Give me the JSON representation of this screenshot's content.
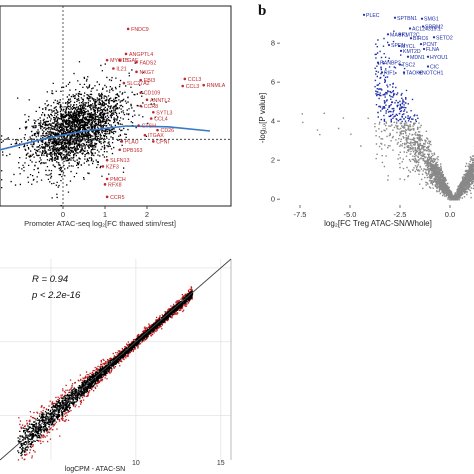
{
  "panel_b_letter": "b",
  "chart_data": [
    {
      "type": "scatter",
      "panel": "top-left",
      "xlabel": "Promoter ATAC-seq log₂[FC thawed stim/rest]",
      "x_ticks": [
        0,
        1,
        2
      ],
      "xlim": [
        -1.5,
        4
      ],
      "ylim": [
        -1.6,
        3.2
      ],
      "dashed_vertical_x": 0,
      "dashed_horizontal_y": 0,
      "point_color": "#000000",
      "label_color": "#c0282d",
      "trend_color": "#3a78c8",
      "trend": [
        [
          -1.5,
          -0.25
        ],
        [
          -0.5,
          0.0
        ],
        [
          0.5,
          0.2
        ],
        [
          1.5,
          0.32
        ],
        [
          2.5,
          0.3
        ],
        [
          3.5,
          0.2
        ]
      ],
      "cloud_center": [
        0.3,
        0.25
      ],
      "labeled_points": [
        {
          "label": "FNDC9",
          "x": 1.55,
          "y": 2.65
        },
        {
          "label": "ANGPTL4",
          "x": 1.5,
          "y": 2.05
        },
        {
          "label": "MYO1B",
          "x": 1.05,
          "y": 1.9
        },
        {
          "label": "ITGAE",
          "x": 1.35,
          "y": 1.9
        },
        {
          "label": "FADS2",
          "x": 1.75,
          "y": 1.85
        },
        {
          "label": "IL21",
          "x": 1.2,
          "y": 1.7
        },
        {
          "label": "NKG7",
          "x": 1.75,
          "y": 1.62
        },
        {
          "label": "EBI3",
          "x": 1.85,
          "y": 1.42
        },
        {
          "label": "SLC27A2",
          "x": 1.45,
          "y": 1.35
        },
        {
          "label": "CCL3",
          "x": 2.9,
          "y": 1.45
        },
        {
          "label": "CCL3",
          "x": 2.85,
          "y": 1.28
        },
        {
          "label": "RNMLA",
          "x": 3.35,
          "y": 1.3
        },
        {
          "label": "CD109",
          "x": 1.85,
          "y": 1.12
        },
        {
          "label": "ANNTL2",
          "x": 2.0,
          "y": 0.95
        },
        {
          "label": "CCR8",
          "x": 1.85,
          "y": 0.8
        },
        {
          "label": "SYTL3",
          "x": 2.15,
          "y": 0.65
        },
        {
          "label": "CCL4",
          "x": 2.1,
          "y": 0.5
        },
        {
          "label": "CTSH",
          "x": 1.8,
          "y": 0.33
        },
        {
          "label": "CD26",
          "x": 2.25,
          "y": 0.22
        },
        {
          "label": "ITGAX",
          "x": 1.95,
          "y": 0.1
        },
        {
          "label": "CPNI",
          "x": 2.15,
          "y": -0.05
        },
        {
          "label": "PLAU",
          "x": 1.4,
          "y": -0.05
        },
        {
          "label": "DPB163",
          "x": 1.35,
          "y": -0.25
        },
        {
          "label": "SLFN13",
          "x": 1.05,
          "y": -0.5
        },
        {
          "label": "KZF3",
          "x": 0.95,
          "y": -0.65
        },
        {
          "label": "PMCH",
          "x": 1.05,
          "y": -0.95
        },
        {
          "label": "RFX8",
          "x": 1.0,
          "y": -1.08
        },
        {
          "label": "CCR5",
          "x": 1.05,
          "y": -1.38
        }
      ]
    },
    {
      "type": "scatter",
      "panel": "top-right",
      "xlabel": "log₂[FC Treg ATAC-SN/Whole]",
      "ylabel": "-log₁₀[P value]",
      "x_ticks": [
        -7.5,
        -5.0,
        -2.5,
        0.0
      ],
      "y_ticks": [
        0,
        2,
        4,
        6,
        8
      ],
      "xlim": [
        -8.5,
        1.2
      ],
      "ylim": [
        -0.3,
        9.8
      ],
      "colors": {
        "not_significant": "#888888",
        "down": "#1f2fa8",
        "up": "#d42020"
      },
      "labeled_points": [
        {
          "label": "PLEC",
          "x": -4.3,
          "y": 9.45
        },
        {
          "label": "SPTBN1",
          "x": -2.75,
          "y": 9.3
        },
        {
          "label": "SMG1",
          "x": -1.4,
          "y": 9.25
        },
        {
          "label": "SRRM2",
          "x": -1.35,
          "y": 8.85
        },
        {
          "label": "AC124319.1",
          "x": -2.0,
          "y": 8.75
        },
        {
          "label": "MACF1",
          "x": -3.1,
          "y": 8.45
        },
        {
          "label": "KMT2C",
          "x": -2.5,
          "y": 8.45
        },
        {
          "label": "BIRC6",
          "x": -1.95,
          "y": 8.25
        },
        {
          "label": "PCNT",
          "x": -1.45,
          "y": 7.95
        },
        {
          "label": "SETD2",
          "x": -0.8,
          "y": 8.3
        },
        {
          "label": "SPEN",
          "x": -3.05,
          "y": 7.9
        },
        {
          "label": "MYCL",
          "x": -2.55,
          "y": 7.85
        },
        {
          "label": "KMT2D",
          "x": -2.45,
          "y": 7.6
        },
        {
          "label": "FLNA",
          "x": -1.3,
          "y": 7.7
        },
        {
          "label": "MDN1",
          "x": -2.1,
          "y": 7.3
        },
        {
          "label": "HYOU1",
          "x": -1.1,
          "y": 7.3
        },
        {
          "label": "RANBP2",
          "x": -3.6,
          "y": 7.0
        },
        {
          "label": "TSC2",
          "x": -2.5,
          "y": 6.9
        },
        {
          "label": "CIC",
          "x": -1.1,
          "y": 6.8
        },
        {
          "label": "RIF1",
          "x": -3.4,
          "y": 6.5
        },
        {
          "label": "TAOK2",
          "x": -2.3,
          "y": 6.5
        },
        {
          "label": "NOTCH1",
          "x": -1.5,
          "y": 6.5
        }
      ]
    },
    {
      "type": "scatter",
      "panel": "bottom",
      "xlabel": "logCPM - ATAC-SN",
      "x_ticks": [
        10,
        15
      ],
      "xlim": [
        2.0,
        15.6
      ],
      "ylim": [
        2.0,
        15.6
      ],
      "annotations": [
        "R = 0.94",
        "p < 2.2e-16"
      ],
      "colors": {
        "points": "#000000",
        "outliers": "#c01818"
      },
      "identity_line": [
        [
          2.0,
          2.0
        ],
        [
          15.6,
          15.6
        ]
      ]
    }
  ]
}
